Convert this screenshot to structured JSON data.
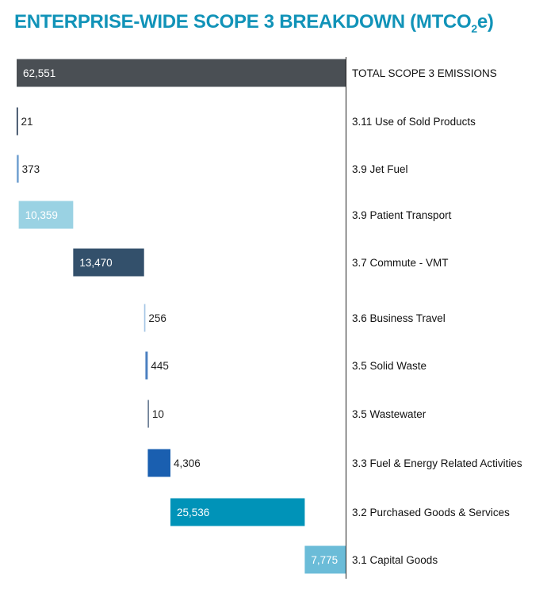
{
  "chart_data": {
    "type": "bar",
    "subtype": "waterfall",
    "title": "ENTERPRISE-WIDE SCOPE 3 BREAKDOWN (MTCO",
    "title_sub": "2",
    "title_end": "e)",
    "orientation": "horizontal",
    "grid": false,
    "xlim": [
      0,
      62551
    ],
    "categories": [
      "TOTAL SCOPE 3 EMISSIONS",
      "3.11 Use of Sold Products",
      "3.9 Jet Fuel",
      "3.9 Patient Transport",
      "3.7 Commute - VMT",
      "3.6 Business Travel",
      "3.5 Solid Waste",
      "3.5 Wastewater",
      "3.3 Fuel & Energy Related Activities",
      "3.2 Purchased Goods & Services",
      "3.1 Capital Goods"
    ],
    "values": [
      62551,
      21,
      373,
      10359,
      13470,
      256,
      445,
      10,
      4306,
      25536,
      7775
    ],
    "labels": [
      "62,551",
      "21",
      "373",
      "10,359",
      "13,470",
      "256",
      "445",
      "10",
      "4,306",
      "25,536",
      "7,775"
    ],
    "colors": [
      "#4a4f54",
      "#0c2340",
      "#6f9fd0",
      "#9ad2e3",
      "#33506b",
      "#a6c7e6",
      "#4a7fc0",
      "#5a6e88",
      "#1a5fb0",
      "#0093b8",
      "#6bbcd8"
    ]
  }
}
